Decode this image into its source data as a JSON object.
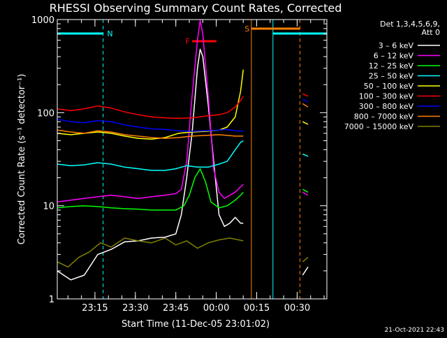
{
  "chart_data": {
    "type": "line",
    "title": "RHESSI Observing Summary Count Rates, Corrected",
    "xlabel": "Start Time (11-Dec-05 23:01:02)",
    "ylabel": "Corrected Count Rate (s⁻¹ detector⁻¹)",
    "yscale": "log",
    "ylim": [
      1,
      1000
    ],
    "xlim_minutes": [
      0,
      100
    ],
    "x_ticks": [
      {
        "label": "23:15",
        "minute": 13.97
      },
      {
        "label": "23:30",
        "minute": 28.97
      },
      {
        "label": "23:45",
        "minute": 43.97
      },
      {
        "label": "00:00",
        "minute": 58.97
      },
      {
        "label": "00:15",
        "minute": 73.97
      },
      {
        "label": "00:30",
        "minute": 88.97
      }
    ],
    "y_ticks": [
      {
        "label": "1",
        "value": 1
      },
      {
        "label": "10",
        "value": 10
      },
      {
        "label": "100",
        "value": 100
      },
      {
        "label": "1000",
        "value": 1000
      }
    ],
    "legend": {
      "position": "right",
      "header": [
        "Det 1,3,4,5,6,9,",
        "Att 0"
      ]
    },
    "markers": {
      "night_label": "N",
      "flare_label": "F",
      "saa_label": "S",
      "night_start_minutes": [
        0,
        80
      ],
      "night_end_minutes": [
        17
      ],
      "saa_start_minutes": [
        72
      ],
      "saa_end_minutes": [
        90
      ]
    },
    "series": [
      {
        "name": "3 – 6 keV",
        "color": "#ffffff",
        "points": [
          [
            0,
            2
          ],
          [
            5,
            1.6
          ],
          [
            10,
            1.8
          ],
          [
            15,
            3
          ],
          [
            20,
            3.4
          ],
          [
            25,
            4.1
          ],
          [
            30,
            4.2
          ],
          [
            35,
            4.5
          ],
          [
            40,
            4.6
          ],
          [
            44,
            5
          ],
          [
            46,
            8
          ],
          [
            48,
            20
          ],
          [
            50,
            60
          ],
          [
            52,
            300
          ],
          [
            53,
            480
          ],
          [
            54,
            400
          ],
          [
            56,
            120
          ],
          [
            58,
            30
          ],
          [
            60,
            8
          ],
          [
            62,
            6
          ],
          [
            64,
            6.5
          ],
          [
            66,
            7.5
          ],
          [
            68,
            6.5
          ],
          [
            69,
            6.5
          ]
        ]
      },
      {
        "name": "6 – 12 keV",
        "color": "#ff00ff",
        "points": [
          [
            0,
            11
          ],
          [
            5,
            11.5
          ],
          [
            10,
            12
          ],
          [
            15,
            12.5
          ],
          [
            20,
            13
          ],
          [
            25,
            12.5
          ],
          [
            30,
            12
          ],
          [
            35,
            12.5
          ],
          [
            40,
            13
          ],
          [
            44,
            13.5
          ],
          [
            46,
            15
          ],
          [
            48,
            30
          ],
          [
            50,
            150
          ],
          [
            52,
            600
          ],
          [
            53,
            980
          ],
          [
            54,
            700
          ],
          [
            56,
            150
          ],
          [
            58,
            25
          ],
          [
            60,
            14
          ],
          [
            62,
            12
          ],
          [
            64,
            13
          ],
          [
            66,
            14
          ],
          [
            68,
            16
          ],
          [
            69,
            17
          ]
        ]
      },
      {
        "name": "12 – 25 keV",
        "color": "#00ff00",
        "points": [
          [
            0,
            9.5
          ],
          [
            5,
            9.8
          ],
          [
            10,
            10
          ],
          [
            15,
            9.8
          ],
          [
            20,
            9.5
          ],
          [
            25,
            9.3
          ],
          [
            30,
            9.2
          ],
          [
            35,
            9
          ],
          [
            40,
            9
          ],
          [
            44,
            9
          ],
          [
            47,
            10
          ],
          [
            49,
            13
          ],
          [
            51,
            20
          ],
          [
            53,
            25
          ],
          [
            55,
            18
          ],
          [
            57,
            11
          ],
          [
            60,
            9.5
          ],
          [
            63,
            10
          ],
          [
            66,
            11.5
          ],
          [
            68,
            13
          ],
          [
            69,
            14
          ]
        ]
      },
      {
        "name": "25 – 50 keV",
        "color": "#00ffff",
        "points": [
          [
            0,
            28
          ],
          [
            5,
            27
          ],
          [
            10,
            27.5
          ],
          [
            15,
            29
          ],
          [
            20,
            28
          ],
          [
            25,
            26
          ],
          [
            30,
            25
          ],
          [
            35,
            24
          ],
          [
            40,
            24
          ],
          [
            44,
            25
          ],
          [
            48,
            27
          ],
          [
            52,
            26
          ],
          [
            56,
            26
          ],
          [
            60,
            28
          ],
          [
            63,
            30
          ],
          [
            66,
            40
          ],
          [
            68,
            48
          ],
          [
            69,
            50
          ]
        ]
      },
      {
        "name": "50 – 100 keV",
        "color": "#ffff00",
        "points": [
          [
            0,
            60
          ],
          [
            5,
            58
          ],
          [
            10,
            60
          ],
          [
            15,
            62
          ],
          [
            20,
            60
          ],
          [
            25,
            56
          ],
          [
            30,
            53
          ],
          [
            35,
            52
          ],
          [
            40,
            54
          ],
          [
            45,
            60
          ],
          [
            50,
            62
          ],
          [
            55,
            63
          ],
          [
            60,
            65
          ],
          [
            63,
            70
          ],
          [
            66,
            90
          ],
          [
            68,
            170
          ],
          [
            69,
            290
          ]
        ]
      },
      {
        "name": "100 – 300 keV",
        "color": "#ff0000",
        "points": [
          [
            0,
            110
          ],
          [
            5,
            105
          ],
          [
            10,
            110
          ],
          [
            15,
            118
          ],
          [
            20,
            112
          ],
          [
            25,
            102
          ],
          [
            30,
            95
          ],
          [
            35,
            90
          ],
          [
            40,
            88
          ],
          [
            45,
            87
          ],
          [
            50,
            88
          ],
          [
            55,
            92
          ],
          [
            60,
            95
          ],
          [
            63,
            100
          ],
          [
            66,
            115
          ],
          [
            68,
            135
          ],
          [
            69,
            150
          ]
        ]
      },
      {
        "name": "300 – 800 keV",
        "color": "#0000ff",
        "points": [
          [
            0,
            85
          ],
          [
            5,
            80
          ],
          [
            10,
            78
          ],
          [
            15,
            82
          ],
          [
            20,
            80
          ],
          [
            25,
            74
          ],
          [
            30,
            70
          ],
          [
            35,
            67
          ],
          [
            40,
            66
          ],
          [
            45,
            64
          ],
          [
            50,
            63
          ],
          [
            55,
            64
          ],
          [
            60,
            65
          ],
          [
            63,
            66
          ],
          [
            66,
            64
          ],
          [
            69,
            63
          ]
        ]
      },
      {
        "name": "800 – 7000 keV",
        "color": "#ff8000",
        "points": [
          [
            0,
            65
          ],
          [
            5,
            62
          ],
          [
            10,
            60
          ],
          [
            15,
            64
          ],
          [
            20,
            62
          ],
          [
            25,
            58
          ],
          [
            30,
            56
          ],
          [
            35,
            54
          ],
          [
            40,
            53
          ],
          [
            45,
            54
          ],
          [
            50,
            56
          ],
          [
            55,
            57
          ],
          [
            60,
            58
          ],
          [
            63,
            57
          ],
          [
            66,
            56
          ],
          [
            69,
            56
          ]
        ]
      },
      {
        "name": "7000 – 15000 keV",
        "color": "#808000",
        "points": [
          [
            0,
            2.5
          ],
          [
            4,
            2.2
          ],
          [
            8,
            2.8
          ],
          [
            12,
            3.2
          ],
          [
            16,
            4
          ],
          [
            20,
            3.6
          ],
          [
            25,
            4.5
          ],
          [
            30,
            4.2
          ],
          [
            35,
            4
          ],
          [
            40,
            4.5
          ],
          [
            44,
            3.8
          ],
          [
            48,
            4.2
          ],
          [
            52,
            3.5
          ],
          [
            56,
            4
          ],
          [
            60,
            4.3
          ],
          [
            64,
            4.5
          ],
          [
            69,
            4.2
          ]
        ]
      }
    ],
    "post_saa_series": [
      {
        "color": "#ff0000",
        "points": [
          [
            91,
            160
          ],
          [
            93,
            150
          ]
        ]
      },
      {
        "color": "#0000ff",
        "points": [
          [
            91,
            140
          ],
          [
            93,
            130
          ]
        ]
      },
      {
        "color": "#ff8000",
        "points": [
          [
            91,
            125
          ],
          [
            93,
            115
          ]
        ]
      },
      {
        "color": "#ffff00",
        "points": [
          [
            91,
            80
          ],
          [
            93,
            75
          ]
        ]
      },
      {
        "color": "#00ffff",
        "points": [
          [
            91,
            36
          ],
          [
            93,
            34
          ]
        ]
      },
      {
        "color": "#00ff00",
        "points": [
          [
            91,
            15
          ],
          [
            93,
            14
          ]
        ]
      },
      {
        "color": "#ff00ff",
        "points": [
          [
            91,
            14
          ],
          [
            93,
            13
          ]
        ]
      },
      {
        "color": "#808000",
        "points": [
          [
            91,
            2.5
          ],
          [
            93,
            2.8
          ]
        ]
      },
      {
        "color": "#ffffff",
        "points": [
          [
            91,
            1.8
          ],
          [
            93,
            2.2
          ]
        ]
      }
    ]
  },
  "footer": {
    "timestamp": "21-Oct-2021 22:43"
  }
}
